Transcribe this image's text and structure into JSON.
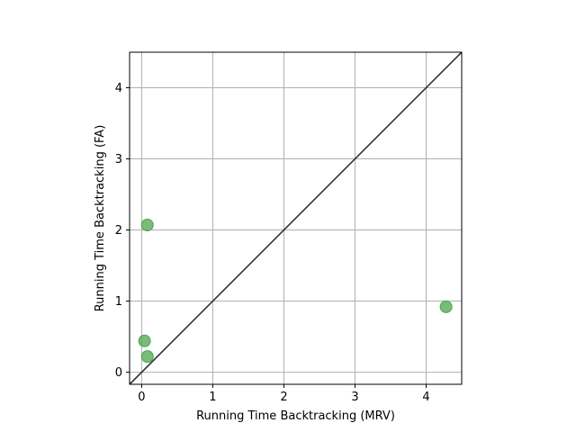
{
  "chart_data": {
    "type": "scatter",
    "title": "",
    "xlabel": "Running Time Backtracking (MRV)",
    "ylabel": "Running Time Backtracking (FA)",
    "xlim": [
      -0.17,
      4.5
    ],
    "ylim": [
      -0.17,
      4.5
    ],
    "xticks": [
      0,
      1,
      2,
      3,
      4
    ],
    "yticks": [
      0,
      1,
      2,
      3,
      4
    ],
    "grid": true,
    "reference_line": "y = x",
    "series": [
      {
        "x": [
          0.08,
          0.04,
          0.08,
          4.28
        ],
        "y": [
          2.07,
          0.44,
          0.22,
          0.92
        ],
        "color": "#4ca64c"
      }
    ],
    "reference_line_color": "#333333",
    "grid_color": "#b0b0b0"
  }
}
